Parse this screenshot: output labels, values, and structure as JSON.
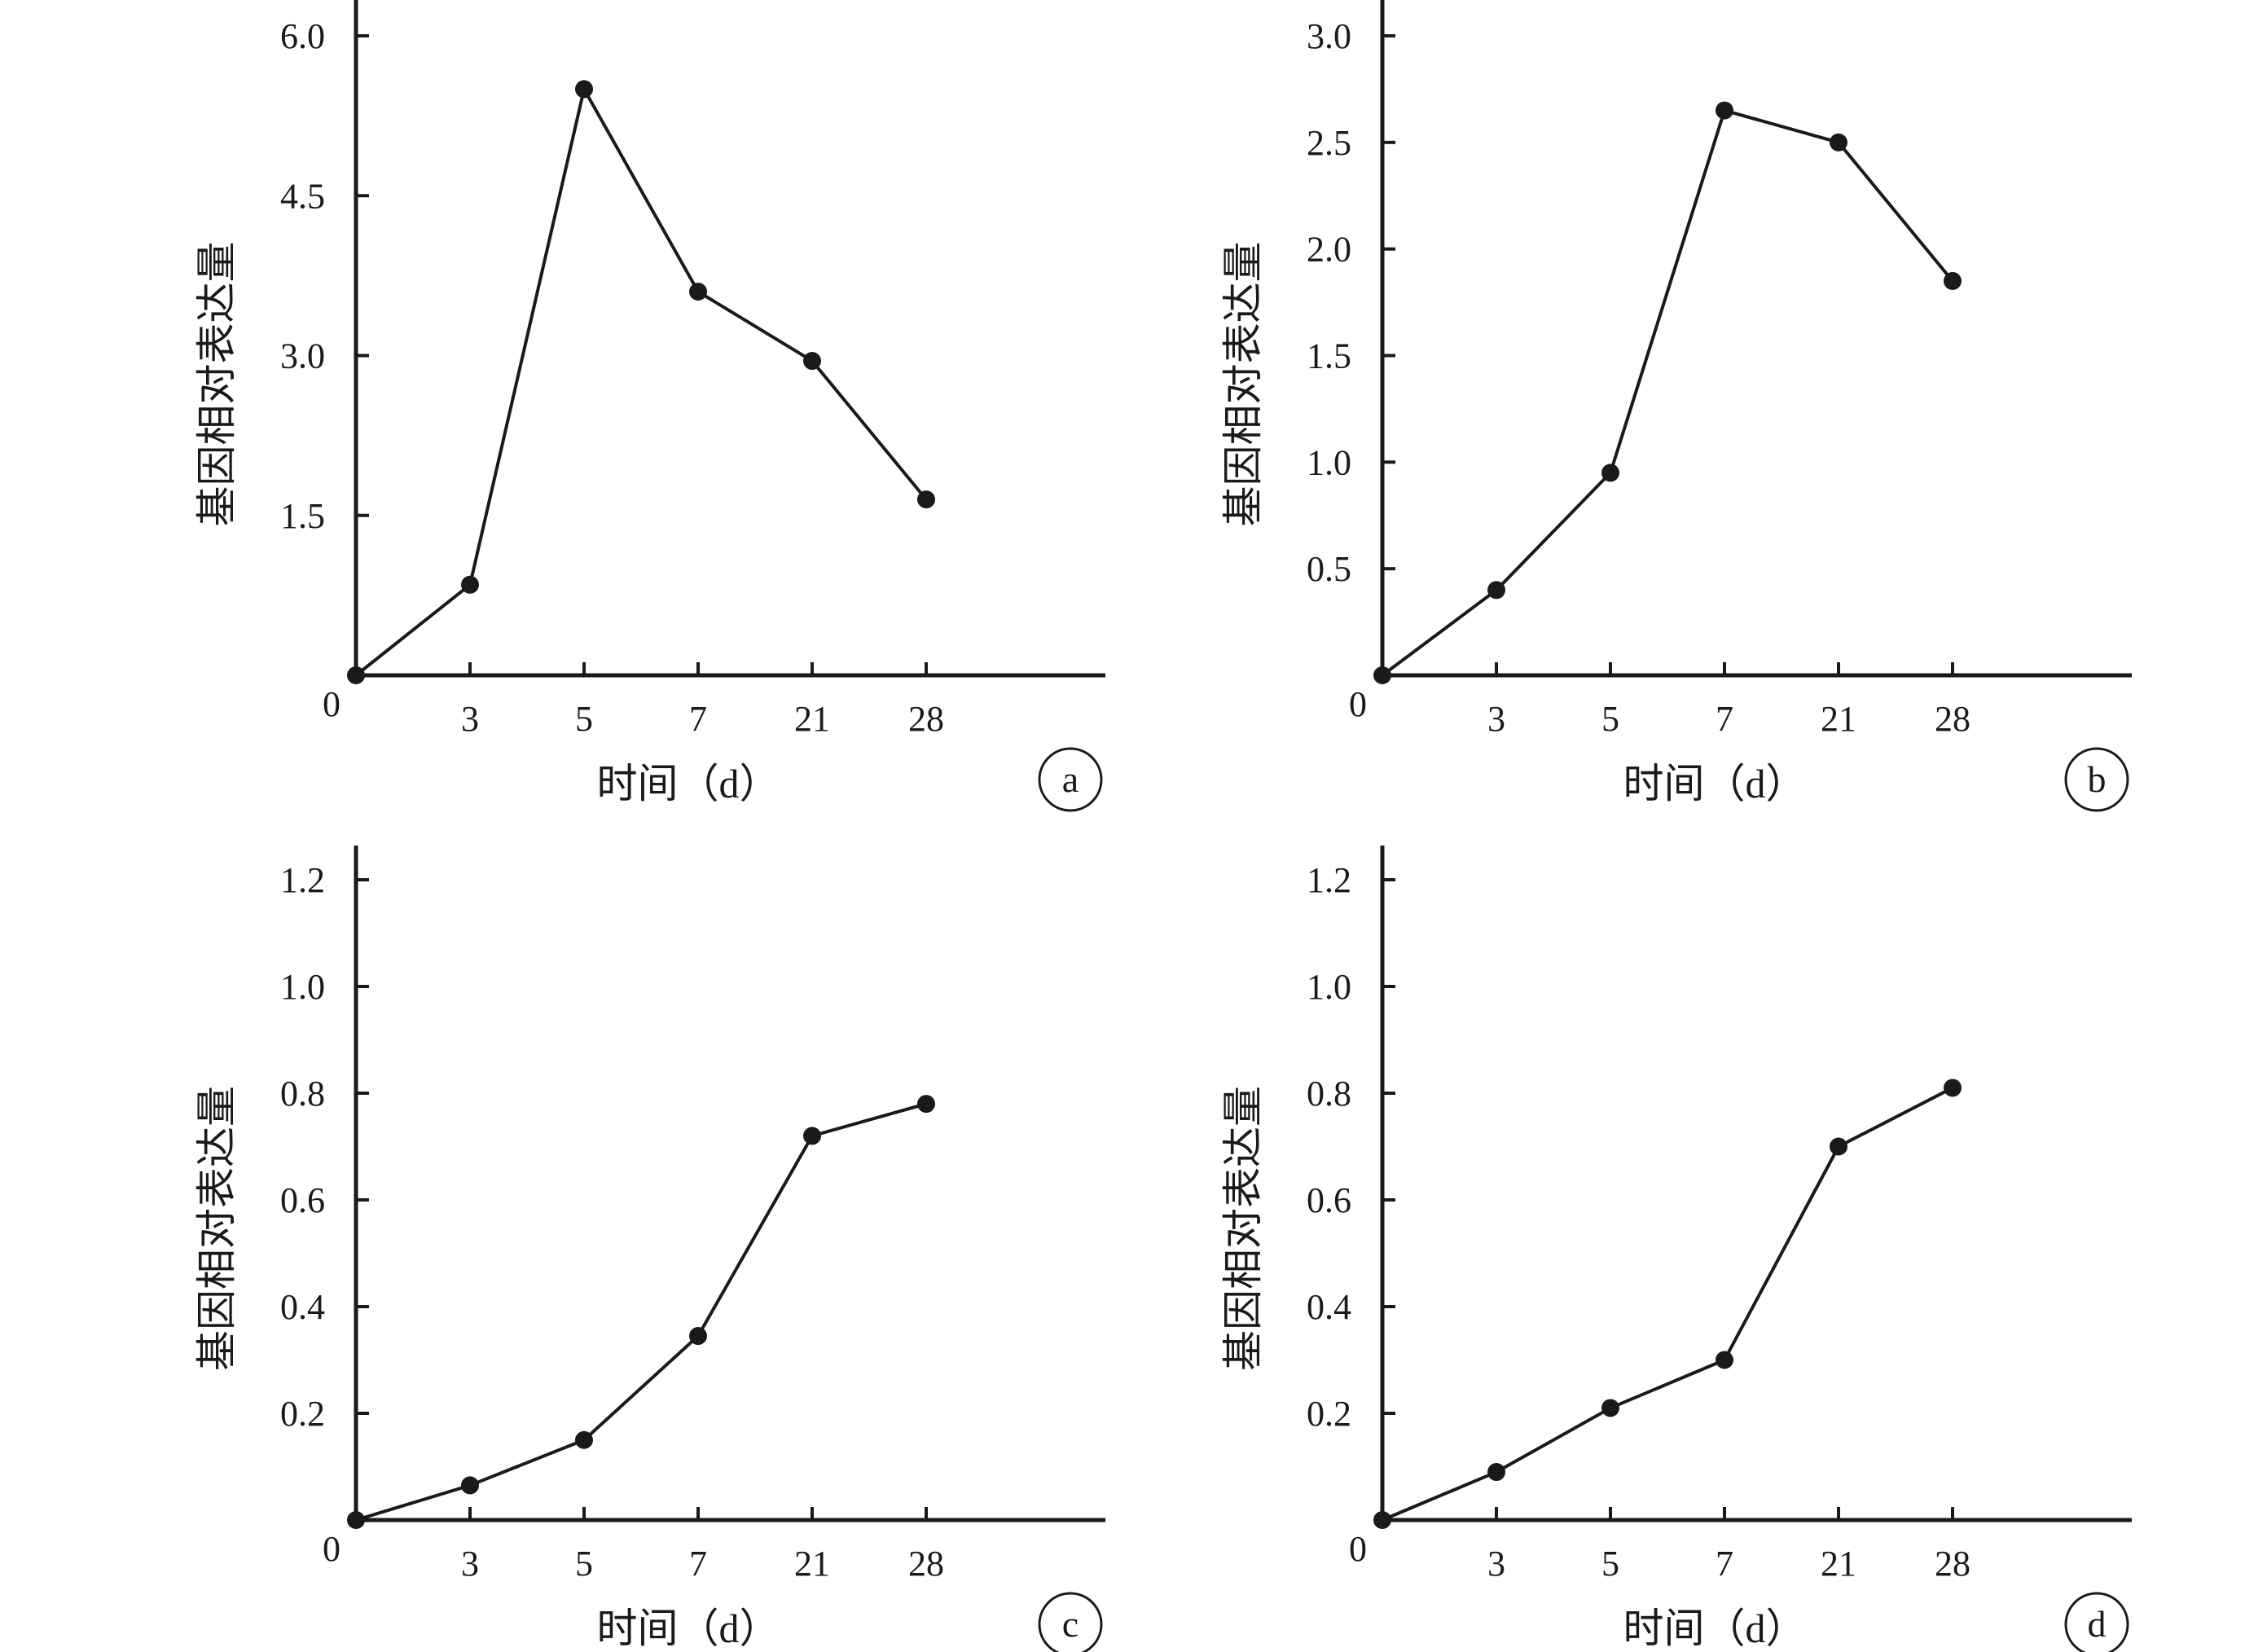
{
  "chart_data": [
    {
      "type": "line",
      "panel": "a",
      "xlabel": "时间（d）",
      "ylabel": "基因相对表达量",
      "categories": [
        "0",
        "3",
        "5",
        "7",
        "21",
        "28"
      ],
      "x_tick_labels": [
        "3",
        "5",
        "7",
        "21",
        "28"
      ],
      "origin_label": "0",
      "y_ticks": [
        "1.5",
        "3.0",
        "4.5",
        "6.0"
      ],
      "ylim": [
        0,
        6.0
      ],
      "series": [
        {
          "values": [
            0,
            0.85,
            5.5,
            3.6,
            2.95,
            1.65
          ]
        }
      ],
      "grid": false,
      "legend": "none"
    },
    {
      "type": "line",
      "panel": "b",
      "xlabel": "时间（d）",
      "ylabel": "基因相对表达量",
      "categories": [
        "0",
        "3",
        "5",
        "7",
        "21",
        "28"
      ],
      "x_tick_labels": [
        "3",
        "5",
        "7",
        "21",
        "28"
      ],
      "origin_label": "0",
      "y_ticks": [
        "0.5",
        "1.0",
        "1.5",
        "2.0",
        "2.5",
        "3.0"
      ],
      "ylim": [
        0,
        3.0
      ],
      "series": [
        {
          "values": [
            0,
            0.4,
            0.95,
            2.65,
            2.5,
            1.85
          ]
        }
      ],
      "grid": false,
      "legend": "none"
    },
    {
      "type": "line",
      "panel": "c",
      "xlabel": "时间（d）",
      "ylabel": "基因相对表达量",
      "categories": [
        "0",
        "3",
        "5",
        "7",
        "21",
        "28"
      ],
      "x_tick_labels": [
        "3",
        "5",
        "7",
        "21",
        "28"
      ],
      "origin_label": "0",
      "y_ticks": [
        "0.2",
        "0.4",
        "0.6",
        "0.8",
        "1.0",
        "1.2"
      ],
      "ylim": [
        0,
        1.2
      ],
      "series": [
        {
          "values": [
            0,
            0.065,
            0.15,
            0.345,
            0.72,
            0.78
          ]
        }
      ],
      "grid": false,
      "legend": "none"
    },
    {
      "type": "line",
      "panel": "d",
      "xlabel": "时间（d）",
      "ylabel": "基因相对表达量",
      "categories": [
        "0",
        "3",
        "5",
        "7",
        "21",
        "28"
      ],
      "x_tick_labels": [
        "3",
        "5",
        "7",
        "21",
        "28"
      ],
      "origin_label": "0",
      "y_ticks": [
        "0.2",
        "0.4",
        "0.6",
        "0.8",
        "1.0",
        "1.2"
      ],
      "ylim": [
        0,
        1.2
      ],
      "series": [
        {
          "values": [
            0,
            0.09,
            0.21,
            0.3,
            0.7,
            0.81
          ]
        }
      ],
      "grid": false,
      "legend": "none"
    }
  ],
  "colors": {
    "line": "#1a1a1a",
    "marker": "#1a1a1a",
    "axis": "#1a1a1a",
    "background": "#ffffff"
  }
}
